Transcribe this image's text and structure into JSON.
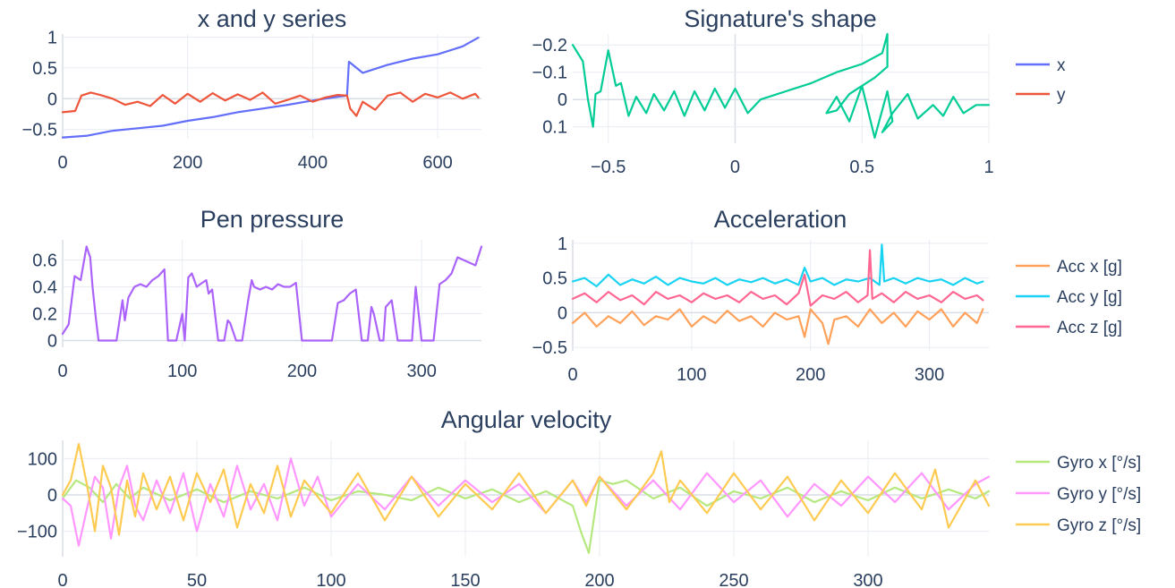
{
  "figure_titles": [
    "x and y series",
    "Signature's shape",
    "Pen pressure",
    "Acceleration",
    "Angular velocity"
  ],
  "chart_data": [
    {
      "type": "line",
      "title": "x and y series",
      "xlim": [
        0,
        670
      ],
      "ylim": [
        -0.65,
        1.05
      ],
      "xticks": [
        "0",
        "200",
        "400",
        "600"
      ],
      "yticks": [
        "1",
        "0.5",
        "0",
        "−0.5"
      ],
      "series": [
        {
          "name": "x",
          "color": "#636efa",
          "x": [
            0,
            40,
            80,
            120,
            160,
            200,
            240,
            280,
            320,
            360,
            400,
            440,
            455,
            458,
            480,
            520,
            560,
            600,
            640,
            665
          ],
          "y": [
            -0.63,
            -0.6,
            -0.52,
            -0.48,
            -0.44,
            -0.36,
            -0.3,
            -0.22,
            -0.16,
            -0.1,
            -0.03,
            0.03,
            0.05,
            0.6,
            0.42,
            0.55,
            0.65,
            0.72,
            0.85,
            0.99
          ]
        },
        {
          "name": "y",
          "color": "#ef553b",
          "x": [
            0,
            20,
            30,
            45,
            60,
            80,
            100,
            120,
            140,
            160,
            180,
            200,
            220,
            240,
            260,
            280,
            300,
            320,
            340,
            360,
            380,
            400,
            420,
            440,
            455,
            460,
            470,
            480,
            500,
            520,
            540,
            560,
            580,
            600,
            620,
            640,
            660,
            665
          ],
          "y": [
            -0.22,
            -0.2,
            0.05,
            0.1,
            0.06,
            0.0,
            -0.1,
            -0.05,
            -0.12,
            0.06,
            -0.08,
            0.08,
            -0.05,
            0.09,
            -0.03,
            0.07,
            -0.02,
            0.1,
            -0.08,
            -0.02,
            0.05,
            -0.05,
            0.02,
            0.06,
            0.05,
            -0.16,
            -0.28,
            -0.05,
            -0.18,
            0.05,
            0.1,
            -0.05,
            0.08,
            0.02,
            0.1,
            0.0,
            0.08,
            0.02
          ]
        }
      ]
    },
    {
      "type": "line",
      "title": "Signature's shape",
      "xlim": [
        -0.64,
        1.0
      ],
      "ylim": [
        -0.24,
        0.16
      ],
      "xticks": [
        "−0.5",
        "0",
        "0.5",
        "1"
      ],
      "yticks": [
        "−0.2",
        "−0.1",
        "0",
        "0.1"
      ],
      "series": [
        {
          "name": "",
          "color": "#00cc96",
          "x": [
            -0.64,
            -0.6,
            -0.58,
            -0.56,
            -0.55,
            -0.53,
            -0.5,
            -0.47,
            -0.45,
            -0.42,
            -0.39,
            -0.35,
            -0.32,
            -0.28,
            -0.24,
            -0.2,
            -0.16,
            -0.12,
            -0.08,
            -0.04,
            0.0,
            0.05,
            0.1,
            0.2,
            0.3,
            0.4,
            0.5,
            0.58,
            0.6,
            0.6,
            0.55,
            0.45,
            0.4,
            0.36,
            0.4,
            0.45,
            0.5,
            0.55,
            0.6,
            0.62,
            0.58,
            0.62,
            0.68,
            0.72,
            0.78,
            0.82,
            0.86,
            0.9,
            0.95,
            1.0
          ],
          "y": [
            -0.2,
            -0.14,
            0.0,
            0.1,
            -0.02,
            -0.03,
            -0.18,
            -0.05,
            -0.06,
            0.06,
            -0.01,
            0.05,
            -0.02,
            0.04,
            -0.03,
            0.06,
            -0.03,
            0.04,
            -0.04,
            0.03,
            -0.04,
            0.05,
            0.0,
            -0.03,
            -0.06,
            -0.1,
            -0.13,
            -0.17,
            -0.24,
            -0.12,
            -0.08,
            -0.02,
            0.04,
            0.05,
            -0.01,
            0.08,
            -0.05,
            0.14,
            -0.03,
            0.08,
            0.12,
            0.05,
            -0.02,
            0.07,
            0.02,
            0.06,
            -0.01,
            0.05,
            0.02,
            0.02
          ]
        }
      ]
    },
    {
      "type": "line",
      "title": "Pen pressure",
      "xlim": [
        0,
        350
      ],
      "ylim": [
        -0.05,
        0.75
      ],
      "xticks": [
        "0",
        "100",
        "200",
        "300"
      ],
      "yticks": [
        "0.6",
        "0.4",
        "0.2",
        "0"
      ],
      "series": [
        {
          "name": "",
          "color": "#ab63fa",
          "x": [
            0,
            5,
            10,
            15,
            20,
            23,
            25,
            28,
            30,
            35,
            45,
            50,
            52,
            55,
            60,
            65,
            70,
            75,
            80,
            85,
            88,
            90,
            95,
            100,
            102,
            105,
            108,
            112,
            115,
            120,
            122,
            125,
            130,
            135,
            138,
            140,
            145,
            150,
            155,
            158,
            160,
            165,
            170,
            175,
            180,
            185,
            190,
            195,
            200,
            210,
            220,
            225,
            230,
            235,
            240,
            245,
            250,
            255,
            258,
            260,
            265,
            268,
            270,
            275,
            280,
            285,
            290,
            292,
            295,
            300,
            305,
            310,
            315,
            320,
            325,
            330,
            335,
            340,
            345,
            350
          ],
          "y": [
            0.05,
            0.12,
            0.48,
            0.45,
            0.7,
            0.62,
            0.4,
            0.15,
            0.0,
            0.0,
            0.0,
            0.3,
            0.15,
            0.32,
            0.4,
            0.42,
            0.4,
            0.45,
            0.48,
            0.53,
            0.0,
            0.0,
            0.0,
            0.2,
            0.0,
            0.47,
            0.5,
            0.4,
            0.42,
            0.45,
            0.35,
            0.38,
            0.0,
            0.0,
            0.15,
            0.13,
            0.0,
            0.0,
            0.3,
            0.45,
            0.4,
            0.38,
            0.4,
            0.38,
            0.42,
            0.4,
            0.4,
            0.43,
            0.0,
            0.0,
            0.0,
            0.0,
            0.28,
            0.3,
            0.35,
            0.38,
            0.0,
            0.0,
            0.25,
            0.2,
            0.0,
            0.0,
            0.25,
            0.3,
            0.0,
            0.0,
            0.0,
            0.0,
            0.4,
            0.0,
            0.0,
            0.0,
            0.42,
            0.45,
            0.5,
            0.62,
            0.6,
            0.58,
            0.56,
            0.7
          ]
        }
      ]
    },
    {
      "type": "line",
      "title": "Acceleration",
      "xlim": [
        0,
        350
      ],
      "ylim": [
        -0.55,
        1.05
      ],
      "xticks": [
        "0",
        "100",
        "200",
        "300"
      ],
      "yticks": [
        "1",
        "0.5",
        "0",
        "−0.5"
      ],
      "series": [
        {
          "name": "Acc x [g]",
          "color": "#ffa15a",
          "x": [
            0,
            10,
            20,
            30,
            40,
            50,
            60,
            70,
            80,
            90,
            100,
            110,
            120,
            130,
            140,
            150,
            160,
            170,
            180,
            190,
            195,
            200,
            210,
            215,
            220,
            230,
            240,
            250,
            260,
            270,
            280,
            290,
            300,
            310,
            320,
            330,
            340,
            345
          ],
          "y": [
            -0.15,
            0.0,
            -0.2,
            -0.05,
            -0.15,
            0.02,
            -0.18,
            -0.05,
            -0.1,
            0.05,
            -0.2,
            -0.05,
            -0.15,
            0.03,
            -0.12,
            -0.05,
            -0.2,
            0.0,
            -0.1,
            -0.05,
            -0.35,
            0.05,
            -0.15,
            -0.45,
            -0.1,
            -0.05,
            -0.2,
            0.05,
            -0.15,
            0.0,
            -0.2,
            0.02,
            -0.1,
            0.05,
            -0.2,
            0.0,
            -0.15,
            0.05
          ]
        },
        {
          "name": "Acc y [g]",
          "color": "#19d3f3",
          "x": [
            0,
            10,
            20,
            30,
            40,
            50,
            60,
            70,
            80,
            90,
            100,
            110,
            120,
            130,
            140,
            150,
            160,
            170,
            180,
            190,
            195,
            200,
            210,
            220,
            230,
            240,
            250,
            258,
            260,
            262,
            270,
            280,
            290,
            300,
            310,
            320,
            330,
            340,
            345
          ],
          "y": [
            0.45,
            0.5,
            0.38,
            0.55,
            0.4,
            0.48,
            0.42,
            0.52,
            0.4,
            0.5,
            0.45,
            0.42,
            0.5,
            0.4,
            0.48,
            0.44,
            0.5,
            0.42,
            0.48,
            0.4,
            0.65,
            0.45,
            0.5,
            0.4,
            0.48,
            0.45,
            0.5,
            0.4,
            0.98,
            0.45,
            0.5,
            0.42,
            0.5,
            0.45,
            0.48,
            0.4,
            0.5,
            0.42,
            0.45
          ]
        },
        {
          "name": "Acc z [g]",
          "color": "#ff6692",
          "x": [
            0,
            10,
            20,
            30,
            40,
            50,
            60,
            70,
            80,
            90,
            100,
            110,
            120,
            130,
            140,
            150,
            160,
            170,
            180,
            190,
            195,
            200,
            210,
            220,
            230,
            240,
            248,
            250,
            252,
            260,
            270,
            280,
            290,
            300,
            310,
            320,
            330,
            340,
            345
          ],
          "y": [
            0.2,
            0.28,
            0.15,
            0.3,
            0.18,
            0.25,
            0.12,
            0.3,
            0.2,
            0.25,
            0.15,
            0.28,
            0.2,
            0.25,
            0.15,
            0.3,
            0.2,
            0.25,
            0.12,
            0.28,
            0.55,
            0.1,
            0.25,
            0.2,
            0.3,
            0.15,
            0.25,
            0.9,
            0.2,
            0.28,
            0.15,
            0.3,
            0.2,
            0.25,
            0.15,
            0.3,
            0.2,
            0.25,
            0.18
          ]
        }
      ]
    },
    {
      "type": "line",
      "title": "Angular velocity",
      "xlim": [
        0,
        345
      ],
      "ylim": [
        -170,
        150
      ],
      "xticks": [
        "0",
        "50",
        "100",
        "150",
        "200",
        "250",
        "300"
      ],
      "yticks": [
        "100",
        "0",
        "−100"
      ],
      "series": [
        {
          "name": "Gyro x [°/s]",
          "color": "#b6e880",
          "x": [
            0,
            5,
            10,
            15,
            20,
            25,
            30,
            40,
            50,
            60,
            70,
            80,
            90,
            100,
            110,
            120,
            130,
            140,
            150,
            160,
            170,
            180,
            190,
            193,
            196,
            200,
            205,
            210,
            220,
            230,
            240,
            250,
            260,
            270,
            280,
            290,
            300,
            310,
            320,
            330,
            340,
            345
          ],
          "y": [
            -10,
            40,
            20,
            -20,
            30,
            -10,
            20,
            -15,
            15,
            -20,
            10,
            -10,
            20,
            -15,
            10,
            0,
            -15,
            20,
            -10,
            15,
            -20,
            10,
            -30,
            -100,
            -160,
            40,
            30,
            40,
            -10,
            20,
            -30,
            10,
            -10,
            20,
            -20,
            10,
            -15,
            20,
            -10,
            15,
            -10,
            10
          ]
        },
        {
          "name": "Gyro y [°/s]",
          "color": "#ff97ff",
          "x": [
            0,
            3,
            6,
            9,
            12,
            15,
            18,
            21,
            24,
            27,
            30,
            35,
            40,
            45,
            50,
            55,
            60,
            65,
            70,
            75,
            80,
            85,
            90,
            95,
            100,
            110,
            120,
            130,
            140,
            150,
            160,
            170,
            180,
            190,
            195,
            200,
            210,
            220,
            230,
            240,
            250,
            260,
            270,
            280,
            290,
            300,
            310,
            320,
            330,
            340,
            345
          ],
          "y": [
            -10,
            -30,
            -140,
            -40,
            50,
            20,
            -120,
            20,
            80,
            -30,
            -70,
            40,
            -50,
            60,
            -100,
            30,
            -60,
            80,
            -40,
            30,
            -70,
            100,
            -30,
            50,
            -60,
            30,
            -40,
            50,
            -30,
            40,
            -20,
            30,
            -50,
            40,
            -20,
            50,
            -30,
            40,
            -40,
            60,
            -20,
            40,
            -60,
            30,
            -30,
            50,
            -20,
            60,
            -40,
            30,
            50
          ]
        },
        {
          "name": "Gyro z [°/s]",
          "color": "#fecb52",
          "x": [
            0,
            3,
            6,
            9,
            12,
            15,
            18,
            21,
            24,
            27,
            30,
            35,
            40,
            45,
            50,
            55,
            60,
            65,
            70,
            75,
            80,
            85,
            90,
            100,
            110,
            120,
            130,
            140,
            150,
            160,
            170,
            180,
            190,
            195,
            200,
            210,
            220,
            223,
            226,
            230,
            240,
            250,
            260,
            270,
            280,
            290,
            300,
            310,
            320,
            325,
            330,
            340,
            345
          ],
          "y": [
            0,
            40,
            140,
            30,
            -100,
            80,
            20,
            -110,
            40,
            -60,
            60,
            -40,
            50,
            -70,
            60,
            -20,
            70,
            -90,
            30,
            -50,
            80,
            -60,
            40,
            -50,
            60,
            -70,
            50,
            -60,
            30,
            -40,
            60,
            -50,
            40,
            -30,
            50,
            -40,
            60,
            120,
            -20,
            40,
            -50,
            60,
            -40,
            50,
            -70,
            40,
            -50,
            60,
            -40,
            70,
            -90,
            40,
            -30
          ]
        }
      ]
    }
  ]
}
